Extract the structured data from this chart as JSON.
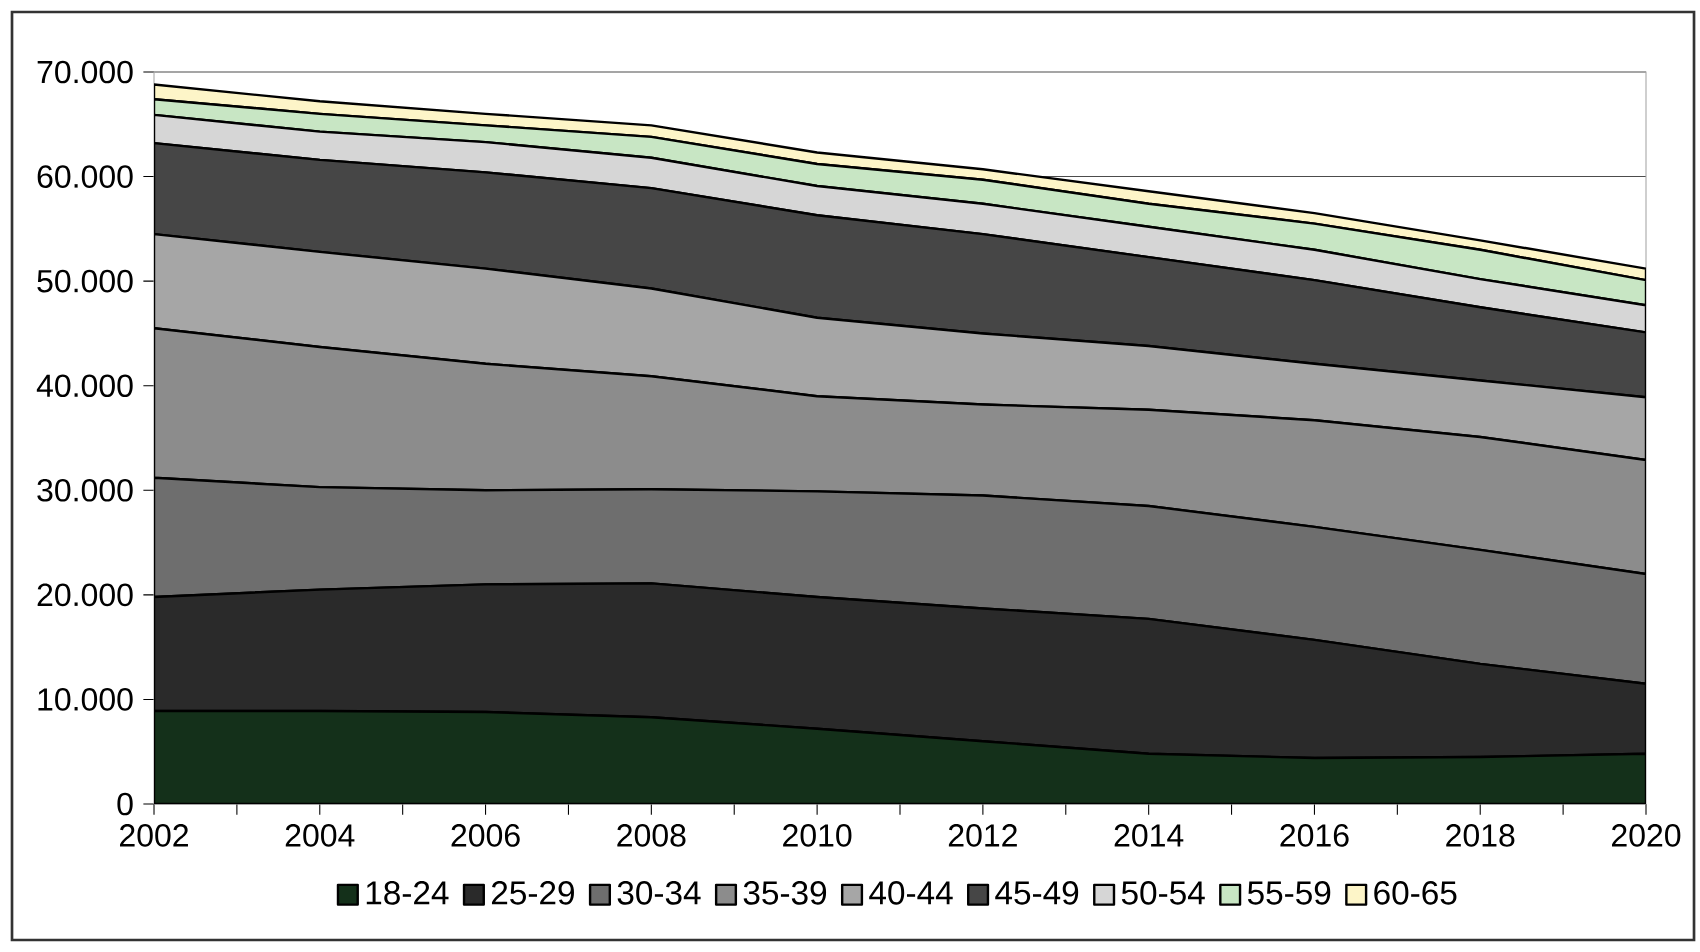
{
  "chart_data": {
    "type": "area",
    "stacked": true,
    "x": [
      2002,
      2004,
      2006,
      2008,
      2010,
      2012,
      2014,
      2016,
      2018,
      2020
    ],
    "series": [
      {
        "name": "18-24",
        "color": "#14301a",
        "values": [
          8900,
          8900,
          8800,
          8300,
          7200,
          6000,
          4800,
          4400,
          4500,
          4800
        ]
      },
      {
        "name": "25-29",
        "color": "#2a2a2a",
        "values": [
          10900,
          11600,
          12200,
          12800,
          12600,
          12700,
          12900,
          11300,
          8900,
          6700
        ]
      },
      {
        "name": "30-34",
        "color": "#6e6e6e",
        "values": [
          11400,
          9800,
          9000,
          9000,
          10100,
          10800,
          10800,
          10800,
          10900,
          10500
        ]
      },
      {
        "name": "35-39",
        "color": "#8c8c8c",
        "values": [
          14300,
          13400,
          12100,
          10800,
          9100,
          8700,
          9200,
          10200,
          10800,
          10900
        ]
      },
      {
        "name": "40-44",
        "color": "#a6a6a6",
        "values": [
          9000,
          9100,
          9100,
          8400,
          7500,
          6800,
          6100,
          5400,
          5400,
          6000
        ]
      },
      {
        "name": "45-49",
        "color": "#464646",
        "values": [
          8700,
          8800,
          9200,
          9600,
          9800,
          9500,
          8500,
          8000,
          7000,
          6200
        ]
      },
      {
        "name": "50-54",
        "color": "#d6d6d6",
        "values": [
          2700,
          2700,
          2900,
          2900,
          2800,
          2900,
          2900,
          2900,
          2700,
          2600
        ]
      },
      {
        "name": "55-59",
        "color": "#c8e6c4",
        "values": [
          1500,
          1700,
          1600,
          2000,
          2100,
          2300,
          2200,
          2500,
          2800,
          2400
        ]
      },
      {
        "name": "60-65",
        "color": "#fdf5c8",
        "values": [
          1400,
          1200,
          1100,
          1100,
          1100,
          1000,
          1200,
          1000,
          900,
          1100
        ]
      }
    ],
    "xlim": [
      2002,
      2020
    ],
    "xticks": [
      2002,
      {
        "value": 2003,
        "label": null
      },
      2004,
      {
        "value": 2005,
        "label": null
      },
      2006,
      {
        "value": 2007,
        "label": null
      },
      2008,
      {
        "value": 2009,
        "label": null
      },
      2010,
      {
        "value": 2011,
        "label": null
      },
      2012,
      {
        "value": 2013,
        "label": null
      },
      2014,
      {
        "value": 2015,
        "label": null
      },
      2016,
      {
        "value": 2017,
        "label": null
      },
      2018,
      {
        "value": 2019,
        "label": null
      },
      2020
    ],
    "ylim": [
      0,
      70000
    ],
    "yticks": [
      0,
      {
        "value": 10000,
        "label": "10.000"
      },
      {
        "value": 20000,
        "label": "20.000"
      },
      {
        "value": 30000,
        "label": "30.000"
      },
      {
        "value": 40000,
        "label": "40.000"
      },
      {
        "value": 50000,
        "label": "50.000"
      },
      {
        "value": 60000,
        "label": "60.000"
      },
      {
        "value": 70000,
        "label": "70.000"
      }
    ],
    "grid": "y",
    "legend": "bottom",
    "line_style": "solid"
  }
}
